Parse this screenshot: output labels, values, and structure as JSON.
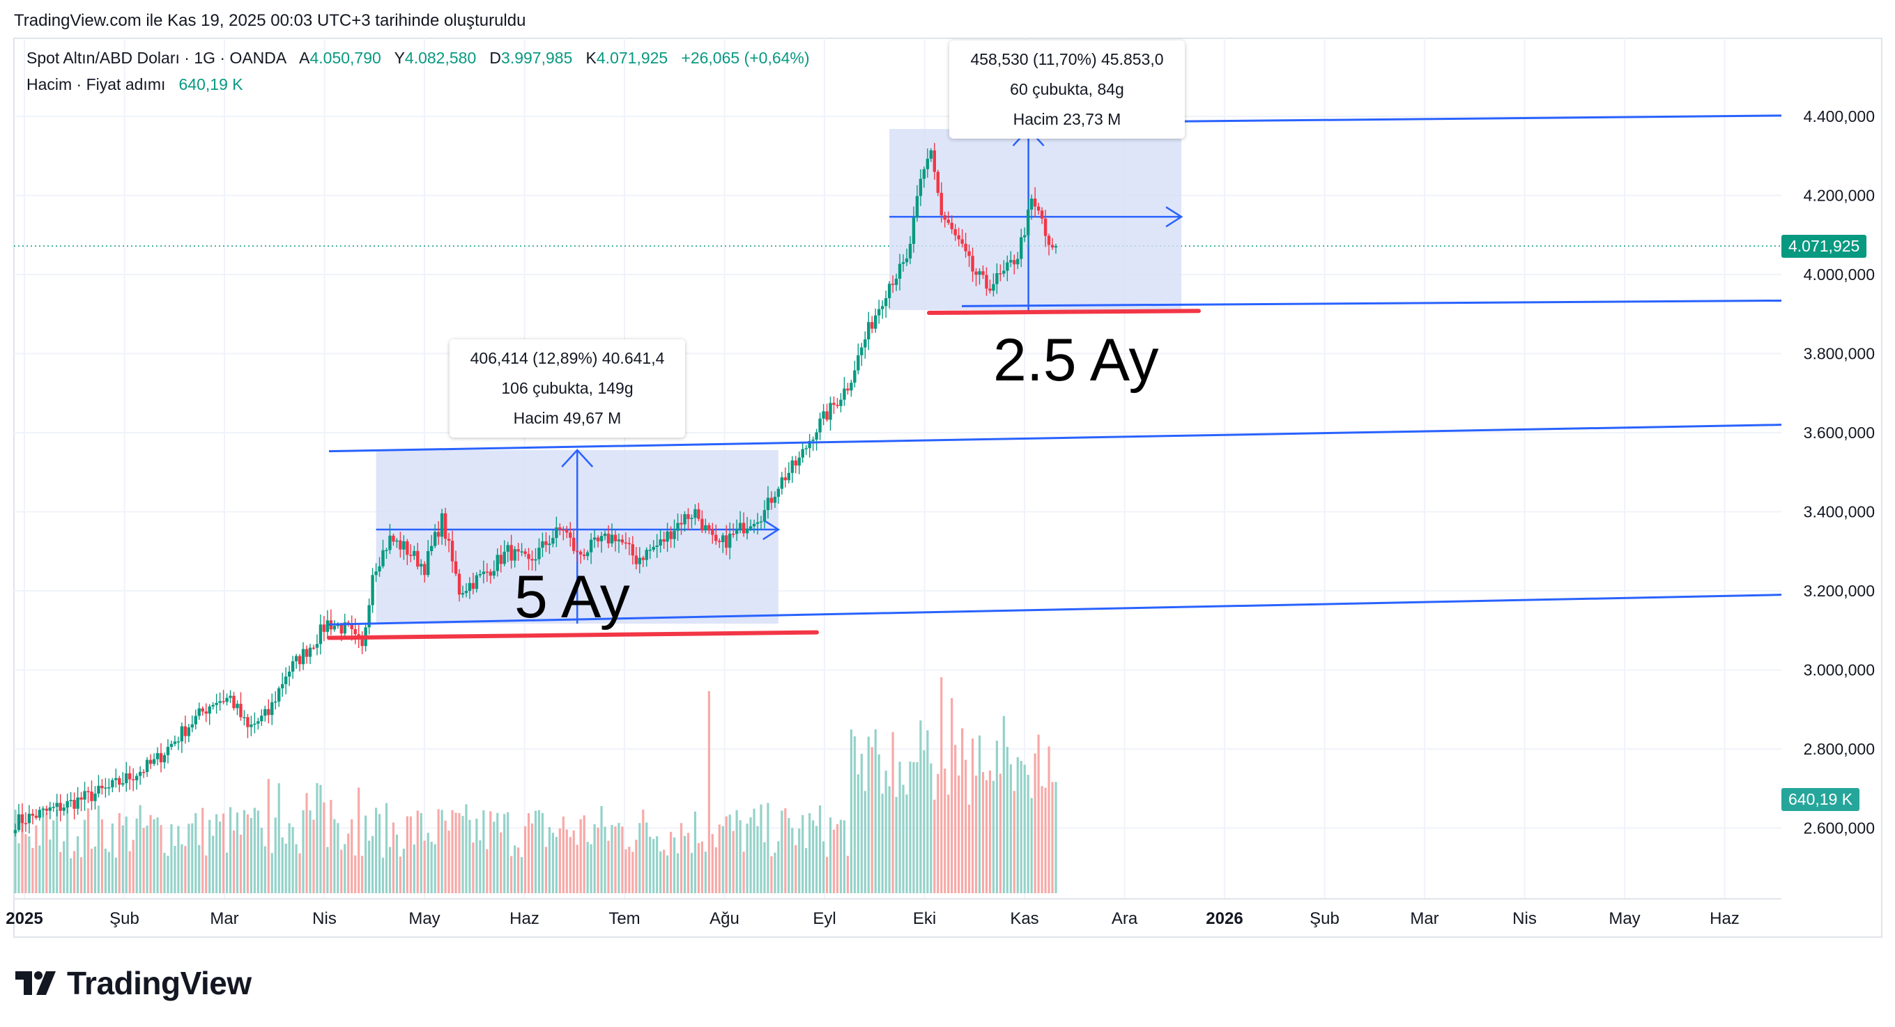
{
  "credit": "TradingView.com ile Kas 19, 2025 00:03 UTC+3 tarihinde oluşturuldu",
  "header": {
    "symbol": "Spot Altın/ABD Doları · 1G · OANDA",
    "o_label": "A",
    "o_value": "4.050,790",
    "h_label": "Y",
    "h_value": "4.082,580",
    "l_label": "D",
    "l_value": "3.997,985",
    "c_label": "K",
    "c_value": "4.071,925",
    "change": "+26,065 (+0,64%)",
    "volume_label": "Hacim · Fiyat adımı",
    "volume_value": "640,19 K"
  },
  "tooltips": {
    "range1": {
      "line1": "406,414 (12,89%) 40.641,4",
      "line2": "106 çubukta, 149g",
      "line3": "Hacim 49,67 M"
    },
    "range2": {
      "line1": "458,530 (11,70%) 45.853,0",
      "line2": "60 çubukta, 84g",
      "line3": "Hacim 23,73 M"
    }
  },
  "annotations": {
    "range1_text": "5 Ay",
    "range2_text": "2.5 Ay"
  },
  "brand": "TradingView",
  "colors": {
    "up": "#089981",
    "down": "#f23645",
    "line": "#2962ff",
    "range_fill": "#d6def8",
    "red_line": "#f23645"
  },
  "chart_data": {
    "type": "candlestick",
    "title": "Spot Altın/ABD Doları · 1G · OANDA",
    "price_axis_ticks": [
      "4.400,000",
      "4.200,000",
      "4.000,000",
      "3.800,000",
      "3.600,000",
      "3.400,000",
      "3.200,000",
      "3.000,000",
      "2.800,000",
      "2.600,000"
    ],
    "price_axis_values": [
      4400,
      4200,
      4000,
      3800,
      3600,
      3400,
      3200,
      3000,
      2800,
      2600
    ],
    "time_axis_ticks": [
      "2025",
      "Şub",
      "Mar",
      "Nis",
      "May",
      "Haz",
      "Tem",
      "Ağu",
      "Eyl",
      "Eki",
      "Kas",
      "Ara",
      "2026",
      "Şub",
      "Mar",
      "Nis",
      "May",
      "Haz"
    ],
    "ylim": [
      2380,
      4480
    ],
    "last_price": "4.071,925",
    "last_volume": "640,19 K",
    "close_path_anchors": [
      [
        0,
        2615
      ],
      [
        15,
        2660
      ],
      [
        27,
        2700
      ],
      [
        40,
        2765
      ],
      [
        50,
        2860
      ],
      [
        57,
        2920
      ],
      [
        62,
        2930
      ],
      [
        67,
        2850
      ],
      [
        73,
        2890
      ],
      [
        78,
        2990
      ],
      [
        86,
        3070
      ],
      [
        90,
        3120
      ],
      [
        96,
        3100
      ],
      [
        100,
        3050
      ],
      [
        103,
        3250
      ],
      [
        108,
        3330
      ],
      [
        112,
        3310
      ],
      [
        118,
        3260
      ],
      [
        123,
        3380
      ],
      [
        128,
        3200
      ],
      [
        135,
        3240
      ],
      [
        142,
        3300
      ],
      [
        148,
        3270
      ],
      [
        154,
        3330
      ],
      [
        158,
        3360
      ],
      [
        162,
        3290
      ],
      [
        168,
        3320
      ],
      [
        173,
        3340
      ],
      [
        179,
        3280
      ],
      [
        186,
        3320
      ],
      [
        192,
        3380
      ],
      [
        196,
        3400
      ],
      [
        202,
        3310
      ],
      [
        207,
        3340
      ],
      [
        212,
        3380
      ],
      [
        216,
        3400
      ],
      [
        220,
        3470
      ],
      [
        226,
        3530
      ],
      [
        230,
        3600
      ],
      [
        236,
        3670
      ],
      [
        240,
        3720
      ],
      [
        246,
        3860
      ],
      [
        252,
        3980
      ],
      [
        257,
        4030
      ],
      [
        261,
        4230
      ],
      [
        264,
        4320
      ],
      [
        267,
        4150
      ],
      [
        272,
        4080
      ],
      [
        276,
        4010
      ],
      [
        280,
        3970
      ],
      [
        285,
        4000
      ],
      [
        289,
        4050
      ],
      [
        293,
        4180
      ],
      [
        296,
        4140
      ],
      [
        298,
        4060
      ],
      [
        300,
        4071.925
      ]
    ],
    "rectangles": [
      {
        "label": "5 Ay",
        "price_top": 3556,
        "price_bottom": 3117,
        "price_mid": 3355,
        "change": "406,414 (12,89%) 40.641,4",
        "bars": "106 çubukta, 149g",
        "volume": "Hacim 49,67 M"
      },
      {
        "label": "2.5 Ay",
        "price_top": 4368,
        "price_bottom": 3910,
        "price_mid": 4146,
        "change": "458,530 (11,70%) 45.853,0",
        "bars": "60 çubukta, 84g",
        "volume": "Hacim 23,73 M"
      }
    ],
    "trend_lines": [
      {
        "from_price": 4382,
        "to_price": 4402
      },
      {
        "from_price": 3920,
        "to_price": 3934
      },
      {
        "from_price": 3553,
        "to_price": 3620
      },
      {
        "from_price": 3115,
        "to_price": 3190
      }
    ],
    "support_lines": [
      {
        "from_price": 3081,
        "to_price": 3095
      },
      {
        "from_price": 3903,
        "to_price": 3908
      }
    ]
  }
}
